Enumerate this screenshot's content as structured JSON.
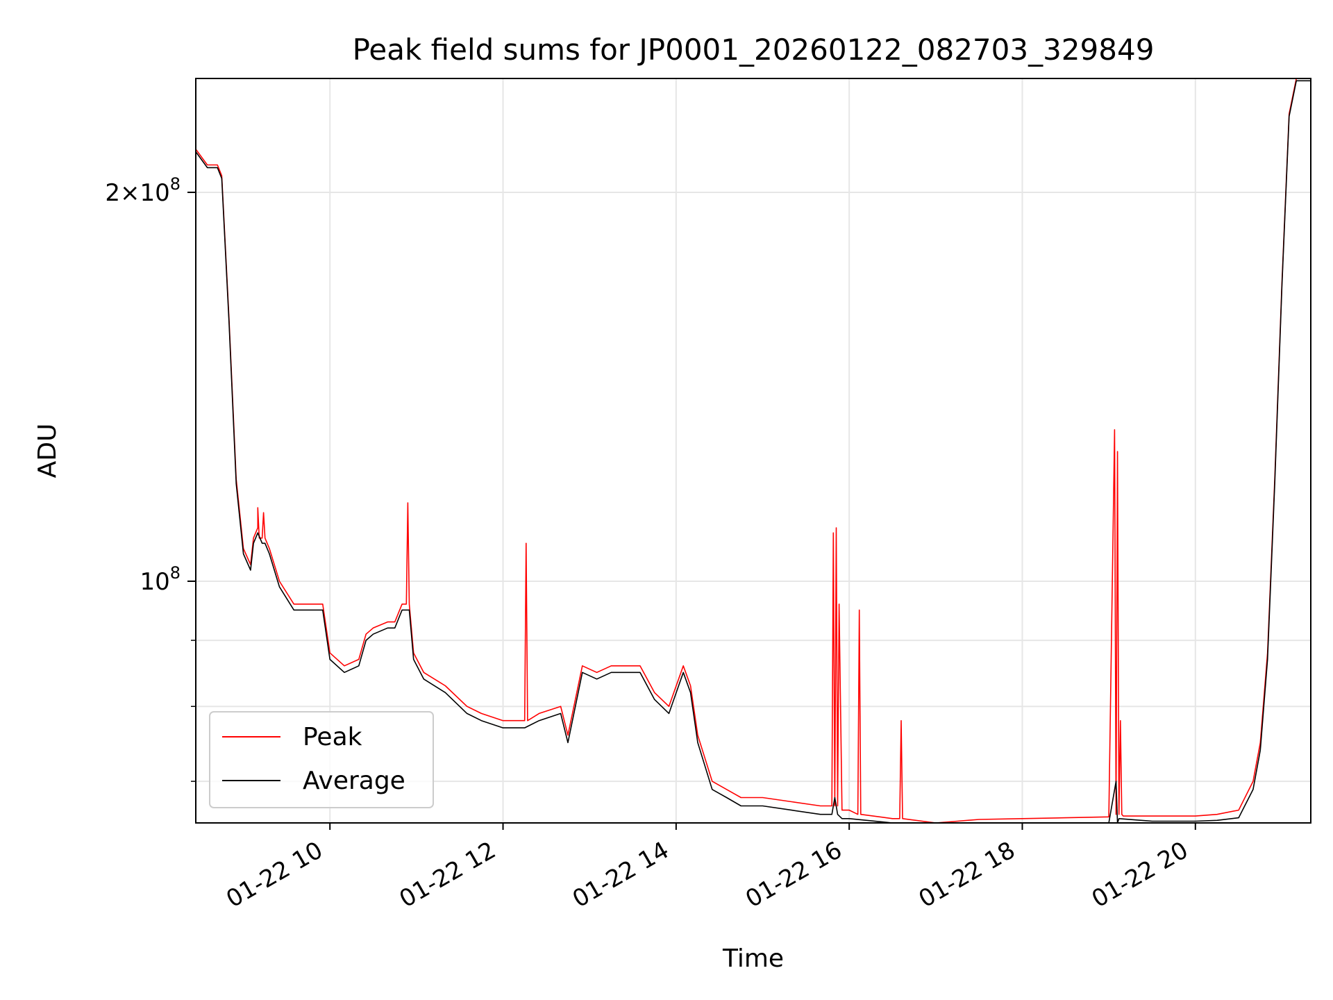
{
  "chart_data": {
    "type": "line",
    "title": "Peak field sums for JP0001_20260122_082703_329849",
    "xlabel": "Time",
    "ylabel": "ADU",
    "yscale": "log",
    "xlim": [
      "01-22 08:27",
      "01-22 21:20"
    ],
    "ylim": [
      65000000,
      245000000
    ],
    "grid": true,
    "legend_position": "lower-left",
    "x_ticks": [
      "01-22 10",
      "01-22 12",
      "01-22 14",
      "01-22 16",
      "01-22 18",
      "01-22 20"
    ],
    "y_tick_labels": [
      {
        "value": 100000000,
        "mantissa": "",
        "exponent": "8"
      },
      {
        "value": 200000000,
        "mantissa": "2",
        "exponent": "8"
      }
    ],
    "y_minor_ticks": [
      70000000,
      80000000,
      90000000
    ],
    "series": [
      {
        "name": "Peak",
        "color": "#ff0000",
        "x": [
          "01-22 08:27",
          "01-22 08:35",
          "01-22 08:42",
          "01-22 08:45",
          "01-22 08:50",
          "01-22 08:55",
          "01-22 09:00",
          "01-22 09:05",
          "01-22 09:07",
          "01-22 09:10",
          "01-22 09:10",
          "01-22 09:11",
          "01-22 09:13",
          "01-22 09:14",
          "01-22 09:15",
          "01-22 09:18",
          "01-22 09:25",
          "01-22 09:35",
          "01-22 09:45",
          "01-22 09:55",
          "01-22 10:00",
          "01-22 10:10",
          "01-22 10:20",
          "01-22 10:25",
          "01-22 10:30",
          "01-22 10:40",
          "01-22 10:45",
          "01-22 10:50",
          "01-22 10:53",
          "01-22 10:54",
          "01-22 10:55",
          "01-22 10:58",
          "01-22 11:05",
          "01-22 11:20",
          "01-22 11:35",
          "01-22 11:45",
          "01-22 12:00",
          "01-22 12:15",
          "01-22 12:16",
          "01-22 12:17",
          "01-22 12:25",
          "01-22 12:40",
          "01-22 12:45",
          "01-22 12:55",
          "01-22 13:05",
          "01-22 13:15",
          "01-22 13:35",
          "01-22 13:45",
          "01-22 13:55",
          "01-22 14:05",
          "01-22 14:10",
          "01-22 14:15",
          "01-22 14:25",
          "01-22 14:35",
          "01-22 14:45",
          "01-22 15:00",
          "01-22 15:20",
          "01-22 15:40",
          "01-22 15:48",
          "01-22 15:49",
          "01-22 15:50",
          "01-22 15:51",
          "01-22 15:52",
          "01-22 15:53",
          "01-22 15:55",
          "01-22 16:00",
          "01-22 16:06",
          "01-22 16:07",
          "01-22 16:08",
          "01-22 16:30",
          "01-22 16:35",
          "01-22 16:36",
          "01-22 16:37",
          "01-22 17:00",
          "01-22 17:15",
          "01-22 17:30",
          "01-22 18:00",
          "01-22 18:30",
          "01-22 19:00",
          "01-22 19:04",
          "01-22 19:05",
          "01-22 19:06",
          "01-22 19:07",
          "01-22 19:08",
          "01-22 19:09",
          "01-22 19:10",
          "01-22 19:30",
          "01-22 20:00",
          "01-22 20:15",
          "01-22 20:30",
          "01-22 20:40",
          "01-22 20:45",
          "01-22 20:50",
          "01-22 20:55",
          "01-22 21:00",
          "01-22 21:05",
          "01-22 21:10",
          "01-22 21:20"
        ],
        "y": [
          216000000,
          210000000,
          210000000,
          206000000,
          160000000,
          120000000,
          106000000,
          103000000,
          108000000,
          110000000,
          114000000,
          108000000,
          108000000,
          113000000,
          108000000,
          106000000,
          100000000,
          96000000,
          96000000,
          96000000,
          88000000,
          86000000,
          87000000,
          91000000,
          92000000,
          93000000,
          93000000,
          96000000,
          96000000,
          115000000,
          96000000,
          88000000,
          85000000,
          83000000,
          80000000,
          79000000,
          78000000,
          78000000,
          107000000,
          78000000,
          79000000,
          80000000,
          76000000,
          86000000,
          85000000,
          86000000,
          86000000,
          82000000,
          80000000,
          86000000,
          83000000,
          76000000,
          70000000,
          69000000,
          68000000,
          68000000,
          67500000,
          67000000,
          67000000,
          109000000,
          67000000,
          110000000,
          67000000,
          96000000,
          66500000,
          66500000,
          66000000,
          95000000,
          66000000,
          65500000,
          65500000,
          78000000,
          65500000,
          65000000,
          65200000,
          65400000,
          65500000,
          65600000,
          65700000,
          131000000,
          66000000,
          126000000,
          66000000,
          78000000,
          66000000,
          65800000,
          65800000,
          65800000,
          66000000,
          66500000,
          70000000,
          75000000,
          88000000,
          120000000,
          170000000,
          230000000,
          245000000,
          245000000
        ]
      },
      {
        "name": "Average",
        "color": "#000000",
        "x": [
          "01-22 08:27",
          "01-22 08:35",
          "01-22 08:42",
          "01-22 08:45",
          "01-22 08:50",
          "01-22 08:55",
          "01-22 09:00",
          "01-22 09:05",
          "01-22 09:07",
          "01-22 09:10",
          "01-22 09:13",
          "01-22 09:15",
          "01-22 09:18",
          "01-22 09:25",
          "01-22 09:35",
          "01-22 09:45",
          "01-22 09:55",
          "01-22 10:00",
          "01-22 10:10",
          "01-22 10:20",
          "01-22 10:25",
          "01-22 10:30",
          "01-22 10:40",
          "01-22 10:45",
          "01-22 10:50",
          "01-22 10:55",
          "01-22 10:58",
          "01-22 11:05",
          "01-22 11:20",
          "01-22 11:35",
          "01-22 11:45",
          "01-22 12:00",
          "01-22 12:15",
          "01-22 12:25",
          "01-22 12:40",
          "01-22 12:45",
          "01-22 12:55",
          "01-22 13:05",
          "01-22 13:15",
          "01-22 13:35",
          "01-22 13:45",
          "01-22 13:55",
          "01-22 14:05",
          "01-22 14:10",
          "01-22 14:15",
          "01-22 14:25",
          "01-22 14:35",
          "01-22 14:45",
          "01-22 15:00",
          "01-22 15:20",
          "01-22 15:40",
          "01-22 15:48",
          "01-22 15:50",
          "01-22 15:52",
          "01-22 15:55",
          "01-22 16:00",
          "01-22 16:30",
          "01-22 17:00",
          "01-22 17:15",
          "01-22 17:30",
          "01-22 18:00",
          "01-22 18:30",
          "01-22 19:00",
          "01-22 19:05",
          "01-22 19:06",
          "01-22 19:07",
          "01-22 19:30",
          "01-22 20:00",
          "01-22 20:15",
          "01-22 20:30",
          "01-22 20:40",
          "01-22 20:45",
          "01-22 20:50",
          "01-22 20:55",
          "01-22 21:00",
          "01-22 21:05",
          "01-22 21:10",
          "01-22 21:20"
        ],
        "y": [
          215000000,
          209000000,
          209000000,
          205000000,
          159000000,
          119000000,
          105000000,
          102000000,
          107000000,
          109000000,
          107000000,
          107000000,
          105000000,
          99000000,
          95000000,
          95000000,
          95000000,
          87000000,
          85000000,
          86000000,
          90000000,
          91000000,
          92000000,
          92000000,
          95000000,
          95000000,
          87000000,
          84000000,
          82000000,
          79000000,
          78000000,
          77000000,
          77000000,
          78000000,
          79000000,
          75000000,
          85000000,
          84000000,
          85000000,
          85000000,
          81000000,
          79000000,
          85000000,
          82000000,
          75000000,
          69000000,
          68000000,
          67000000,
          67000000,
          66500000,
          66000000,
          66000000,
          68000000,
          66000000,
          65500000,
          65500000,
          65000000,
          64500000,
          64600000,
          64800000,
          65000000,
          65000000,
          65000000,
          70000000,
          65000000,
          65500000,
          65200000,
          65200000,
          65300000,
          65600000,
          69000000,
          74000000,
          87000000,
          119000000,
          169000000,
          229000000,
          244000000,
          244000000
        ]
      }
    ]
  }
}
